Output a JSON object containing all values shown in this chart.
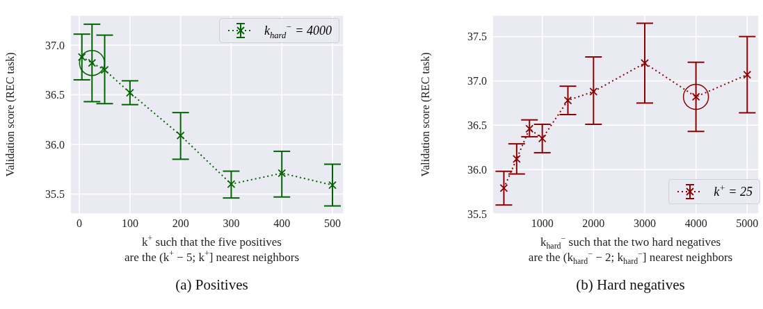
{
  "chart_data": [
    {
      "type": "line",
      "title": "(a) Positives",
      "xlabel": "k$^{+}$ such that the five positives\nare the (k$^{+}$ − 5; k$^{+}$] nearest neighbors",
      "ylabel": "Validation score (REC task)",
      "x": [
        5,
        25,
        50,
        100,
        200,
        300,
        400,
        500
      ],
      "series": [
        {
          "name": "k$_{hard}$$^{−}$ = 4000",
          "color": "#006400",
          "values": [
            36.88,
            36.82,
            36.75,
            36.52,
            36.09,
            35.6,
            35.71,
            35.59
          ],
          "errors": [
            [
              36.65,
              37.11
            ],
            [
              36.43,
              37.21
            ],
            [
              36.41,
              37.1
            ],
            [
              36.4,
              36.64
            ],
            [
              35.85,
              36.32
            ],
            [
              35.46,
              35.73
            ],
            [
              35.47,
              35.93
            ],
            [
              35.38,
              35.8
            ]
          ]
        }
      ],
      "xlim": [
        -18,
        522
      ],
      "xticks": [
        0,
        100,
        200,
        300,
        400,
        500
      ],
      "ylim": [
        35.3,
        37.3
      ],
      "yticks": [
        {
          "value": 35.5,
          "label": "35.5"
        },
        {
          "value": 36,
          "label": "36.0"
        },
        {
          "value": 36.5,
          "label": "36.5"
        },
        {
          "value": 37,
          "label": "37.0"
        }
      ],
      "grid": true,
      "legend": "top right",
      "marker": "cross",
      "line_style": "dotted"
    },
    {
      "type": "line",
      "title": "(b) Hard negatives",
      "xlabel": "k$_{hard}$$^{−}$ such that the two hard negatives\nare the (k$_{hard}$$^{−}$ − 2; k$_{hard}$$^{−}$] nearest neighbors",
      "ylabel": "Validation score (REC task)",
      "x": [
        250,
        500,
        750,
        1000,
        1500,
        2000,
        3000,
        4000,
        5000
      ],
      "series": [
        {
          "name": "k$^{+}$ = 25",
          "color": "#8b0000",
          "values": [
            35.79,
            36.12,
            36.46,
            36.35,
            36.78,
            36.88,
            37.2,
            36.82,
            37.07
          ],
          "errors": [
            [
              35.6,
              35.98
            ],
            [
              35.95,
              36.29
            ],
            [
              36.37,
              36.56
            ],
            [
              36.19,
              36.51
            ],
            [
              36.62,
              36.94
            ],
            [
              36.51,
              37.27
            ],
            [
              36.75,
              37.65
            ],
            [
              36.43,
              37.21
            ],
            [
              36.64,
              37.5
            ]
          ]
        }
      ],
      "xlim": [
        27,
        5227
      ],
      "xticks": [
        1000,
        2000,
        3000,
        4000,
        5000
      ],
      "ylim": [
        35.5,
        37.74
      ],
      "yticks": [
        {
          "value": 35.5,
          "label": "35.5"
        },
        {
          "value": 36,
          "label": "36.0"
        },
        {
          "value": 36.5,
          "label": "36.5"
        },
        {
          "value": 37,
          "label": "37.0"
        },
        {
          "value": 37.5,
          "label": "37.5"
        }
      ],
      "grid": true,
      "legend": "bottom right",
      "marker": "cross",
      "line_style": "dotted"
    }
  ]
}
